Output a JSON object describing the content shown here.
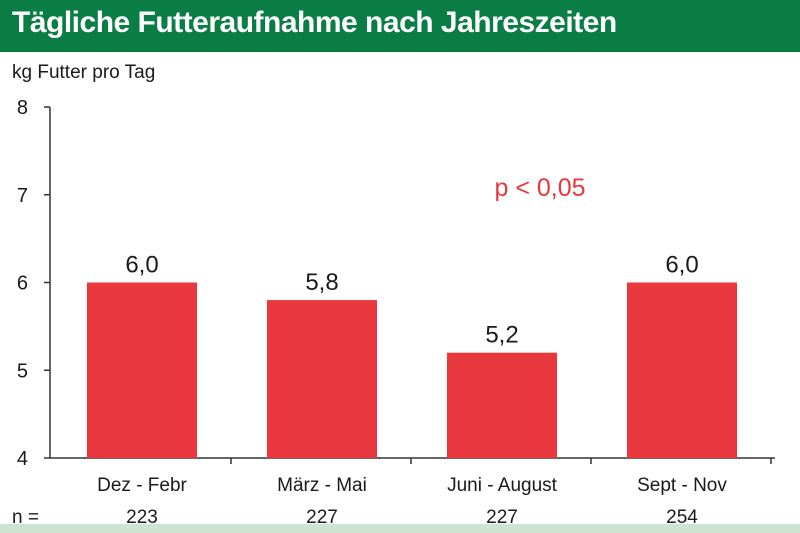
{
  "header": {
    "title": "Tägliche Futteraufnahme nach Jahreszeiten"
  },
  "colors": {
    "header_bg": "#0a7d45",
    "bar": "#e8383d",
    "annotation": "#e8383d",
    "text": "#1a1a1a",
    "axis": "#333333",
    "bottom_strip": "#cfe3d2"
  },
  "chart_data": {
    "type": "bar",
    "title": "Tägliche Futteraufnahme nach Jahreszeiten",
    "xlabel": "",
    "ylabel": "kg Futter pro Tag",
    "categories": [
      "Dez - Febr",
      "März - Mai",
      "Juni - August",
      "Sept - Nov"
    ],
    "values": [
      6.0,
      5.8,
      5.2,
      6.0
    ],
    "value_labels": [
      "6,0",
      "5,8",
      "5,2",
      "6,0"
    ],
    "ylim": [
      4,
      8
    ],
    "yticks": [
      "4",
      "5",
      "6",
      "7",
      "8"
    ],
    "grid": false,
    "annotation": "p < 0,05",
    "n_label": "n =",
    "n_values": [
      "223",
      "227",
      "227",
      "254"
    ]
  }
}
